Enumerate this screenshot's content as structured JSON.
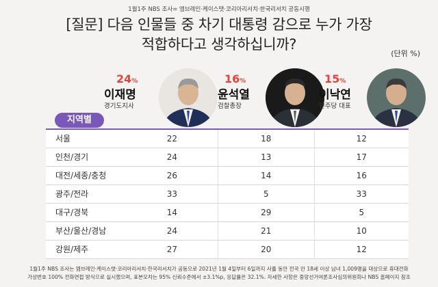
{
  "source_top": "1월1주 NBS 조사= 엠브레인·케이스탯·코리아리서치·한국리서치 공동시행",
  "question": {
    "line1": "[질문] 다음 인물들 중 차기 대통령 감으로 누가 가장",
    "line2": "적합하다고 생각하십니까?"
  },
  "unit": "(단위 %)",
  "region_header": "지역별",
  "candidates": [
    {
      "pct": "24",
      "pct_unit": "%",
      "name": "이재명",
      "role": "경기도지사"
    },
    {
      "pct": "16",
      "pct_unit": "%",
      "name": "윤석열",
      "role": "검찰총장"
    },
    {
      "pct": "15",
      "pct_unit": "%",
      "name": "이낙연",
      "role": "민주당 대표"
    }
  ],
  "chart_data": {
    "type": "table",
    "title": "[질문] 다음 인물들 중 차기 대통령 감으로 누가 가장 적합하다고 생각하십니까?",
    "unit": "%",
    "columns": [
      "이재명",
      "윤석열",
      "이낙연"
    ],
    "overall": [
      24,
      16,
      15
    ],
    "rows": [
      {
        "region": "서울",
        "values": [
          22,
          18,
          12
        ]
      },
      {
        "region": "인천/경기",
        "values": [
          24,
          13,
          17
        ]
      },
      {
        "region": "대전/세종/충청",
        "values": [
          26,
          14,
          16
        ]
      },
      {
        "region": "광주/전라",
        "values": [
          33,
          5,
          33
        ]
      },
      {
        "region": "대구/경북",
        "values": [
          14,
          29,
          5
        ]
      },
      {
        "region": "부산/울산/경남",
        "values": [
          24,
          21,
          10
        ]
      },
      {
        "region": "강원/제주",
        "values": [
          27,
          20,
          12
        ]
      }
    ]
  },
  "footnote": {
    "line1": "1월1주 NBS 조사는 엠브레인·케이스탯·코리아리서치·한국리서치가 공동으로 2021년 1월 4일부터 6일까지 사흘 동안 전국 만 18세 이상 남녀 1,009명을 대상으로 휴대전화",
    "line2": "가상번호 100% 전화면접 방식으로 실시했으며, 표본오차는 95% 신뢰수준에서 ±3.1%p, 응답률은 32.1%. 자세한 사항은 중앙선거여론조사심의위원회나 NBS 홈페이지 참조"
  }
}
